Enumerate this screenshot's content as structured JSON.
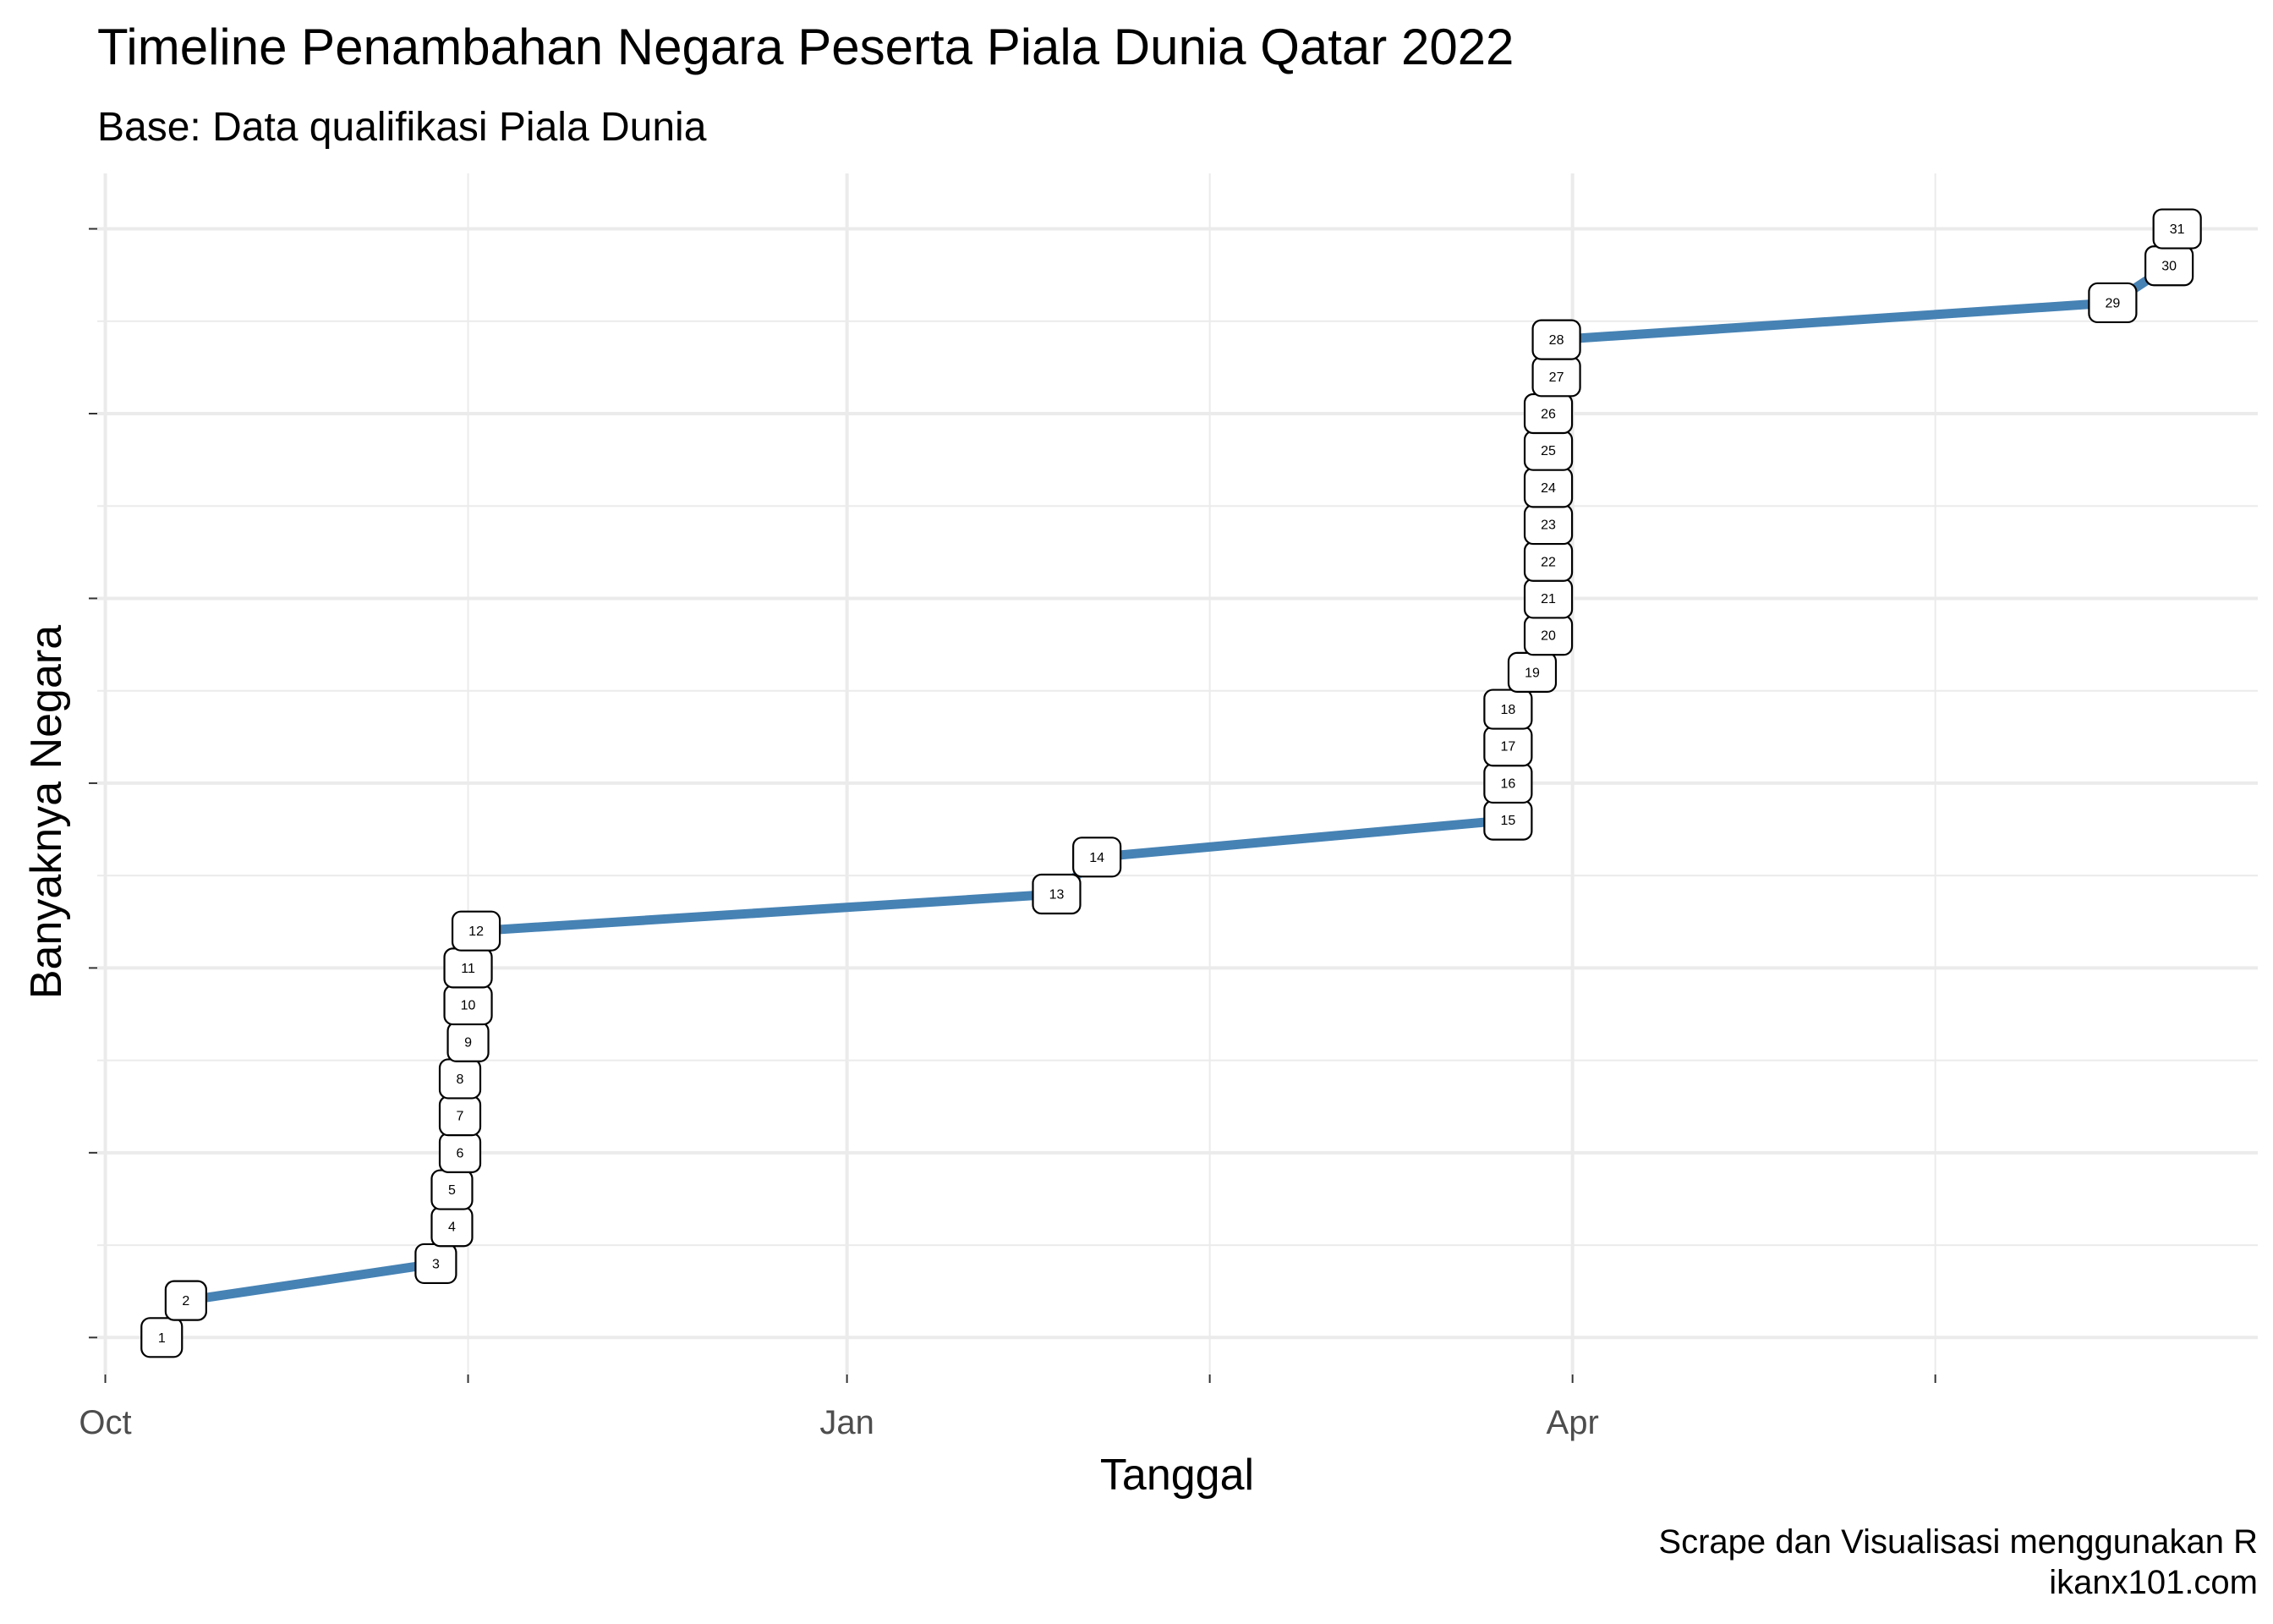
{
  "chart_data": {
    "type": "line",
    "title": "Timeline Penambahan Negara Peserta Piala Dunia Qatar 2022",
    "subtitle": "Base: Data qualifikasi Piala Dunia",
    "xlabel": "Tanggal",
    "ylabel": "Banyaknya Negara",
    "caption": [
      "Scrape dan Visualisasi menggunakan R",
      "ikanx101.com"
    ],
    "x_ticks": [
      {
        "date": "2021-10-01",
        "label": "Oct"
      },
      {
        "date": "2022-01-01",
        "label": "Jan"
      },
      {
        "date": "2022-04-01",
        "label": "Apr"
      }
    ],
    "x_minor_ticks": [
      "2021-11-15",
      "2022-02-15",
      "2022-05-16"
    ],
    "xlim": [
      "2021-09-30",
      "2022-06-25"
    ],
    "ylim": [
      -1,
      31.5
    ],
    "y_ticks": [
      0,
      5,
      10,
      15,
      20,
      25,
      30
    ],
    "y_tick_labels_shown": false,
    "grid": true,
    "series": [
      {
        "color": "#4682b4",
        "points": [
          {
            "x": "2021-10-08",
            "y": 0,
            "label": "1"
          },
          {
            "x": "2021-10-11",
            "y": 1,
            "label": "2"
          },
          {
            "x": "2021-11-11",
            "y": 2,
            "label": "3"
          },
          {
            "x": "2021-11-13",
            "y": 3,
            "label": "4"
          },
          {
            "x": "2021-11-13",
            "y": 4,
            "label": "5"
          },
          {
            "x": "2021-11-14",
            "y": 5,
            "label": "6"
          },
          {
            "x": "2021-11-14",
            "y": 6,
            "label": "7"
          },
          {
            "x": "2021-11-14",
            "y": 7,
            "label": "8"
          },
          {
            "x": "2021-11-15",
            "y": 8,
            "label": "9"
          },
          {
            "x": "2021-11-15",
            "y": 9,
            "label": "10"
          },
          {
            "x": "2021-11-15",
            "y": 10,
            "label": "11"
          },
          {
            "x": "2021-11-16",
            "y": 11,
            "label": "12"
          },
          {
            "x": "2022-01-27",
            "y": 12,
            "label": "13"
          },
          {
            "x": "2022-02-01",
            "y": 13,
            "label": "14"
          },
          {
            "x": "2022-03-24",
            "y": 14,
            "label": "15"
          },
          {
            "x": "2022-03-24",
            "y": 15,
            "label": "16"
          },
          {
            "x": "2022-03-24",
            "y": 16,
            "label": "17"
          },
          {
            "x": "2022-03-24",
            "y": 17,
            "label": "18"
          },
          {
            "x": "2022-03-27",
            "y": 18,
            "label": "19"
          },
          {
            "x": "2022-03-29",
            "y": 19,
            "label": "20"
          },
          {
            "x": "2022-03-29",
            "y": 20,
            "label": "21"
          },
          {
            "x": "2022-03-29",
            "y": 21,
            "label": "22"
          },
          {
            "x": "2022-03-29",
            "y": 22,
            "label": "23"
          },
          {
            "x": "2022-03-29",
            "y": 23,
            "label": "24"
          },
          {
            "x": "2022-03-29",
            "y": 24,
            "label": "25"
          },
          {
            "x": "2022-03-29",
            "y": 25,
            "label": "26"
          },
          {
            "x": "2022-03-30",
            "y": 26,
            "label": "27"
          },
          {
            "x": "2022-03-30",
            "y": 27,
            "label": "28"
          },
          {
            "x": "2022-06-07",
            "y": 28,
            "label": "29"
          },
          {
            "x": "2022-06-14",
            "y": 29,
            "label": "30"
          },
          {
            "x": "2022-06-15",
            "y": 30,
            "label": "31"
          }
        ]
      }
    ]
  }
}
